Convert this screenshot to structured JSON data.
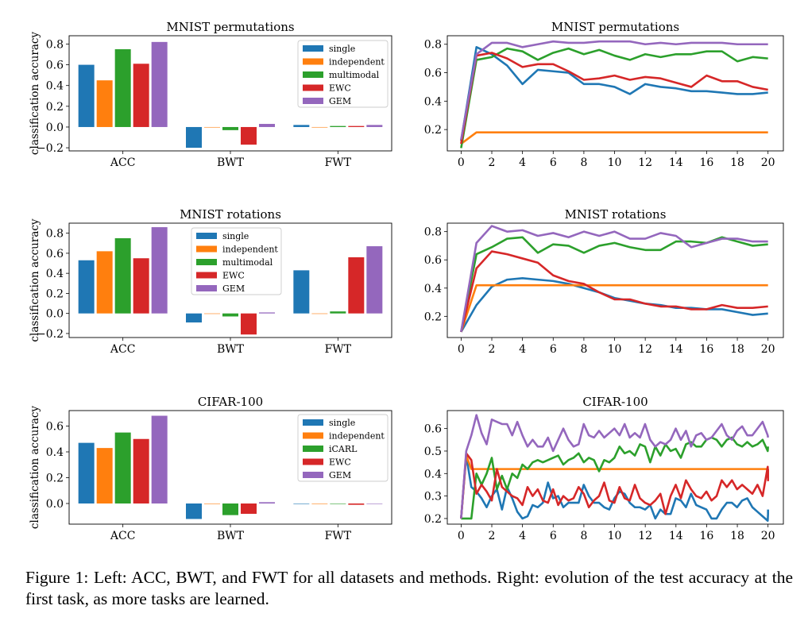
{
  "colors": {
    "single": "#1f77b4",
    "independent": "#ff7f0e",
    "third": "#2ca02c",
    "EWC": "#d62728",
    "GEM": "#9467bd"
  },
  "caption": "Figure 1: Left: ACC, BWT, and FWT for all datasets and methods. Right: evolution of the test accuracy at the first task, as more tasks are learned.",
  "chart_data": [
    {
      "type": "bar",
      "title": "MNIST permutations",
      "ylabel": "classification accuracy",
      "categories": [
        "ACC",
        "BWT",
        "FWT"
      ],
      "ylim": [
        -0.23,
        0.88
      ],
      "yticks": [
        -0.2,
        0.0,
        0.2,
        0.4,
        0.6,
        0.8
      ],
      "legend_position": "top-right",
      "series": [
        {
          "name": "single",
          "values": [
            0.6,
            -0.2,
            0.02
          ]
        },
        {
          "name": "independent",
          "values": [
            0.45,
            0.0,
            0.0
          ]
        },
        {
          "name": "multimodal",
          "values": [
            0.75,
            -0.03,
            0.01
          ]
        },
        {
          "name": "EWC",
          "values": [
            0.61,
            -0.17,
            0.01
          ]
        },
        {
          "name": "GEM",
          "values": [
            0.82,
            0.03,
            0.02
          ]
        }
      ]
    },
    {
      "type": "line",
      "title": "MNIST permutations",
      "x": [
        0,
        1,
        2,
        3,
        4,
        5,
        6,
        7,
        8,
        9,
        10,
        11,
        12,
        13,
        14,
        15,
        16,
        17,
        18,
        19,
        20
      ],
      "xticks": [
        0,
        2,
        4,
        6,
        8,
        10,
        12,
        14,
        16,
        18,
        20
      ],
      "yticks": [
        0.2,
        0.4,
        0.6,
        0.8
      ],
      "xlim": [
        -0.9,
        21
      ],
      "ylim": [
        0.05,
        0.86
      ],
      "series": [
        {
          "color": "single",
          "values": [
            0.12,
            0.78,
            0.73,
            0.65,
            0.52,
            0.62,
            0.61,
            0.6,
            0.52,
            0.52,
            0.5,
            0.45,
            0.52,
            0.5,
            0.49,
            0.47,
            0.47,
            0.46,
            0.45,
            0.45,
            0.46
          ]
        },
        {
          "color": "independent",
          "values": [
            0.1,
            0.18,
            0.18,
            0.18,
            0.18,
            0.18,
            0.18,
            0.18,
            0.18,
            0.18,
            0.18,
            0.18,
            0.18,
            0.18,
            0.18,
            0.18,
            0.18,
            0.18,
            0.18,
            0.18,
            0.18
          ]
        },
        {
          "color": "third",
          "values": [
            0.07,
            0.69,
            0.71,
            0.77,
            0.75,
            0.69,
            0.74,
            0.77,
            0.73,
            0.76,
            0.72,
            0.69,
            0.73,
            0.71,
            0.73,
            0.73,
            0.75,
            0.75,
            0.68,
            0.71,
            0.7
          ]
        },
        {
          "color": "EWC",
          "values": [
            0.1,
            0.72,
            0.74,
            0.7,
            0.64,
            0.66,
            0.66,
            0.61,
            0.55,
            0.56,
            0.58,
            0.55,
            0.57,
            0.56,
            0.53,
            0.5,
            0.58,
            0.54,
            0.54,
            0.5,
            0.48
          ]
        },
        {
          "color": "GEM",
          "values": [
            0.13,
            0.73,
            0.81,
            0.81,
            0.78,
            0.8,
            0.82,
            0.81,
            0.81,
            0.82,
            0.82,
            0.82,
            0.8,
            0.81,
            0.8,
            0.81,
            0.81,
            0.81,
            0.8,
            0.8,
            0.8
          ]
        }
      ]
    },
    {
      "type": "bar",
      "title": "MNIST rotations",
      "ylabel": "classification accuracy",
      "categories": [
        "ACC",
        "BWT",
        "FWT"
      ],
      "ylim": [
        -0.24,
        0.9
      ],
      "yticks": [
        -0.2,
        0.0,
        0.2,
        0.4,
        0.6,
        0.8
      ],
      "legend_position": "top-center",
      "series": [
        {
          "name": "single",
          "values": [
            0.53,
            -0.09,
            0.43
          ]
        },
        {
          "name": "independent",
          "values": [
            0.62,
            0.0,
            0.0
          ]
        },
        {
          "name": "multimodal",
          "values": [
            0.75,
            -0.03,
            0.02
          ]
        },
        {
          "name": "EWC",
          "values": [
            0.55,
            -0.21,
            0.56
          ]
        },
        {
          "name": "GEM",
          "values": [
            0.86,
            0.01,
            0.67
          ]
        }
      ]
    },
    {
      "type": "line",
      "title": "MNIST rotations",
      "x": [
        0,
        1,
        2,
        3,
        4,
        5,
        6,
        7,
        8,
        9,
        10,
        11,
        12,
        13,
        14,
        15,
        16,
        17,
        18,
        19,
        20
      ],
      "xticks": [
        0,
        2,
        4,
        6,
        8,
        10,
        12,
        14,
        16,
        18,
        20
      ],
      "yticks": [
        0.2,
        0.4,
        0.6,
        0.8
      ],
      "xlim": [
        -0.9,
        21
      ],
      "ylim": [
        0.05,
        0.86
      ],
      "series": [
        {
          "color": "single",
          "values": [
            0.09,
            0.28,
            0.41,
            0.46,
            0.47,
            0.46,
            0.45,
            0.43,
            0.4,
            0.37,
            0.33,
            0.31,
            0.29,
            0.28,
            0.26,
            0.26,
            0.25,
            0.25,
            0.23,
            0.21,
            0.22
          ]
        },
        {
          "color": "independent",
          "values": [
            0.09,
            0.42,
            0.42,
            0.42,
            0.42,
            0.42,
            0.42,
            0.42,
            0.42,
            0.42,
            0.42,
            0.42,
            0.42,
            0.42,
            0.42,
            0.42,
            0.42,
            0.42,
            0.42,
            0.42,
            0.42
          ]
        },
        {
          "color": "third",
          "values": [
            0.09,
            0.64,
            0.69,
            0.75,
            0.76,
            0.65,
            0.71,
            0.7,
            0.65,
            0.7,
            0.72,
            0.69,
            0.67,
            0.67,
            0.73,
            0.73,
            0.72,
            0.76,
            0.73,
            0.7,
            0.71
          ]
        },
        {
          "color": "EWC",
          "values": [
            0.09,
            0.54,
            0.66,
            0.64,
            0.61,
            0.58,
            0.49,
            0.45,
            0.43,
            0.37,
            0.32,
            0.32,
            0.29,
            0.27,
            0.27,
            0.25,
            0.25,
            0.28,
            0.26,
            0.26,
            0.27
          ]
        },
        {
          "color": "GEM",
          "values": [
            0.09,
            0.72,
            0.84,
            0.8,
            0.81,
            0.77,
            0.79,
            0.76,
            0.8,
            0.77,
            0.8,
            0.75,
            0.75,
            0.79,
            0.77,
            0.69,
            0.72,
            0.75,
            0.75,
            0.73,
            0.73
          ]
        }
      ]
    },
    {
      "type": "bar",
      "title": "CIFAR-100",
      "ylabel": "classification accuracy",
      "categories": [
        "ACC",
        "BWT",
        "FWT"
      ],
      "ylim": [
        -0.16,
        0.72
      ],
      "yticks": [
        0.0,
        0.2,
        0.4,
        0.6
      ],
      "legend_position": "top-right",
      "series": [
        {
          "name": "single",
          "values": [
            0.47,
            -0.12,
            0.0
          ]
        },
        {
          "name": "independent",
          "values": [
            0.43,
            0.0,
            0.0
          ]
        },
        {
          "name": "iCARL",
          "values": [
            0.55,
            -0.09,
            0.0
          ]
        },
        {
          "name": "EWC",
          "values": [
            0.5,
            -0.08,
            -0.01
          ]
        },
        {
          "name": "GEM",
          "values": [
            0.68,
            0.01,
            0.0
          ]
        }
      ]
    },
    {
      "type": "line",
      "title": "CIFAR-100",
      "x_step": 0.333,
      "xticks": [
        0,
        2,
        4,
        6,
        8,
        10,
        12,
        14,
        16,
        18,
        20
      ],
      "yticks": [
        0.2,
        0.3,
        0.4,
        0.5,
        0.6
      ],
      "xlim": [
        -0.9,
        21
      ],
      "ylim": [
        0.175,
        0.68
      ],
      "series": [
        {
          "color": "single",
          "values": [
            0.2,
            0.48,
            0.34,
            0.32,
            0.29,
            0.25,
            0.3,
            0.33,
            0.24,
            0.34,
            0.29,
            0.23,
            0.2,
            0.21,
            0.26,
            0.25,
            0.27,
            0.36,
            0.29,
            0.3,
            0.25,
            0.27,
            0.27,
            0.27,
            0.35,
            0.3,
            0.27,
            0.27,
            0.25,
            0.24,
            0.29,
            0.32,
            0.31,
            0.27,
            0.25,
            0.25,
            0.24,
            0.26,
            0.2,
            0.24,
            0.22,
            0.22,
            0.29,
            0.28,
            0.25,
            0.31,
            0.26,
            0.25,
            0.24,
            0.2,
            0.2,
            0.24,
            0.27,
            0.27,
            0.25,
            0.28,
            0.29,
            0.25,
            0.23,
            0.21,
            0.19,
            0.22,
            0.24
          ]
        },
        {
          "color": "independent",
          "values": [
            0.2,
            0.48,
            0.42,
            0.42,
            0.42,
            0.42,
            0.42,
            0.42,
            0.42,
            0.42,
            0.42,
            0.42,
            0.42,
            0.42,
            0.42,
            0.42,
            0.42,
            0.42,
            0.42,
            0.42,
            0.42,
            0.42,
            0.42,
            0.42,
            0.42,
            0.42,
            0.42,
            0.42,
            0.42,
            0.42,
            0.42,
            0.42,
            0.42,
            0.42,
            0.42,
            0.42,
            0.42,
            0.42,
            0.42,
            0.42,
            0.42,
            0.42,
            0.42,
            0.42,
            0.42,
            0.42,
            0.42,
            0.42,
            0.42,
            0.42,
            0.42,
            0.42,
            0.42,
            0.42,
            0.42,
            0.42,
            0.42,
            0.42,
            0.42,
            0.42,
            0.42,
            0.42,
            0.42
          ]
        },
        {
          "color": "third",
          "values": [
            0.2,
            0.2,
            0.2,
            0.4,
            0.35,
            0.4,
            0.47,
            0.33,
            0.39,
            0.33,
            0.4,
            0.38,
            0.44,
            0.42,
            0.45,
            0.46,
            0.45,
            0.46,
            0.47,
            0.48,
            0.44,
            0.46,
            0.47,
            0.49,
            0.45,
            0.47,
            0.46,
            0.41,
            0.46,
            0.45,
            0.47,
            0.52,
            0.49,
            0.5,
            0.48,
            0.53,
            0.52,
            0.45,
            0.52,
            0.48,
            0.53,
            0.5,
            0.51,
            0.47,
            0.53,
            0.54,
            0.52,
            0.52,
            0.55,
            0.56,
            0.55,
            0.52,
            0.55,
            0.56,
            0.53,
            0.52,
            0.54,
            0.52,
            0.53,
            0.55,
            0.5,
            0.52,
            0.52
          ]
        },
        {
          "color": "EWC",
          "values": [
            0.2,
            0.49,
            0.46,
            0.31,
            0.35,
            0.32,
            0.28,
            0.42,
            0.34,
            0.32,
            0.3,
            0.29,
            0.26,
            0.34,
            0.3,
            0.33,
            0.28,
            0.27,
            0.33,
            0.26,
            0.3,
            0.28,
            0.29,
            0.34,
            0.31,
            0.25,
            0.28,
            0.3,
            0.36,
            0.28,
            0.27,
            0.34,
            0.29,
            0.28,
            0.35,
            0.29,
            0.27,
            0.26,
            0.28,
            0.31,
            0.22,
            0.3,
            0.35,
            0.29,
            0.37,
            0.33,
            0.3,
            0.29,
            0.32,
            0.28,
            0.3,
            0.37,
            0.34,
            0.37,
            0.33,
            0.35,
            0.33,
            0.31,
            0.35,
            0.3,
            0.43,
            0.37,
            0.42
          ]
        },
        {
          "color": "GEM",
          "values": [
            0.2,
            0.5,
            0.57,
            0.66,
            0.58,
            0.53,
            0.64,
            0.63,
            0.62,
            0.62,
            0.57,
            0.63,
            0.57,
            0.52,
            0.55,
            0.52,
            0.52,
            0.56,
            0.5,
            0.55,
            0.6,
            0.55,
            0.52,
            0.53,
            0.62,
            0.57,
            0.56,
            0.59,
            0.56,
            0.58,
            0.6,
            0.57,
            0.62,
            0.56,
            0.58,
            0.56,
            0.62,
            0.55,
            0.52,
            0.54,
            0.53,
            0.55,
            0.6,
            0.55,
            0.59,
            0.52,
            0.57,
            0.58,
            0.55,
            0.56,
            0.59,
            0.62,
            0.57,
            0.55,
            0.59,
            0.61,
            0.57,
            0.57,
            0.6,
            0.63,
            0.57,
            0.56,
            0.56
          ]
        }
      ]
    }
  ]
}
